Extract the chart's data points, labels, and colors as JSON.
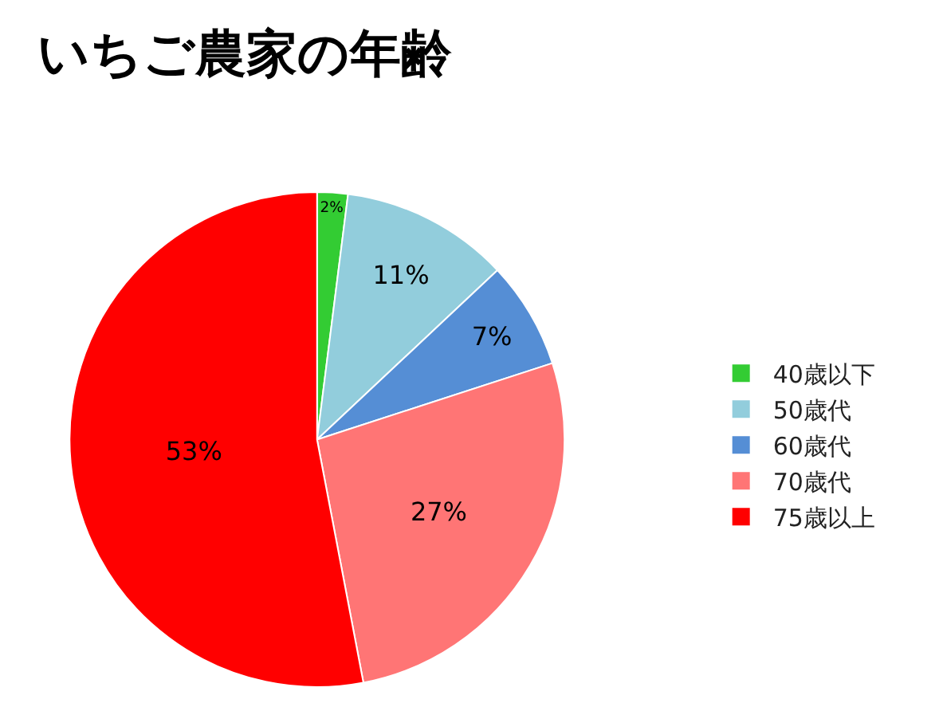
{
  "chart_data": {
    "type": "pie",
    "title": "いちご農家の年齢",
    "categories": [
      "40歳以下",
      "50歳代",
      "60歳代",
      "70歳代",
      "75歳以上"
    ],
    "values": [
      2,
      11,
      7,
      27,
      53
    ],
    "value_labels": [
      "2%",
      "11%",
      "7%",
      "27%",
      "53%"
    ],
    "colors": [
      "#33cc33",
      "#92cddc",
      "#558ed5",
      "#ff7575",
      "#ff0000"
    ],
    "legend": "right"
  }
}
